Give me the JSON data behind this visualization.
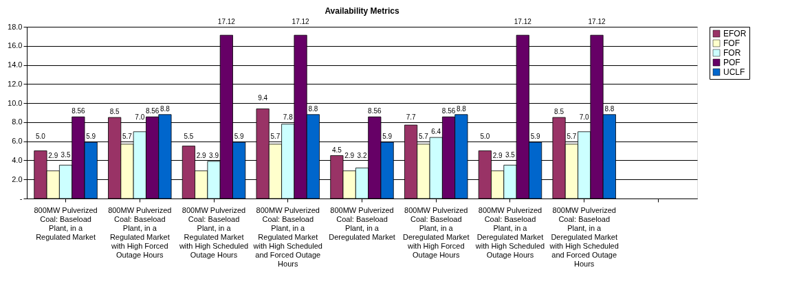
{
  "chart_data": {
    "type": "bar",
    "title": "Availability Metrics",
    "categories": [
      "800MW Pulverized Coal: Baseload Plant, in a Regulated Market",
      "800MW Pulverized Coal: Baseload Plant, in a Regulated Market with High Forced Outage Hours",
      "800MW Pulverized Coal: Baseload Plant, in a Regulated Market with High Scheduled Outage Hours",
      "800MW Pulverized Coal: Baseload Plant, in a Regulated Market with High Scheduled and Forced Outage Hours",
      "800MW Pulverized Coal: Baseload Plant, in a Deregulated Market",
      "800MW Pulverized Coal: Baseload Plant, in a Deregulated Market with High Forced Outage Hours",
      "800MW Pulverized Coal: Baseload Plant, in a Deregulated Market with High Scheduled Outage Hours",
      "800MW Pulverized Coal: Baseload Plant, in a Deregulated Market with High Scheduled and Forced Outage Hours",
      null
    ],
    "series": [
      {
        "name": "EFOR",
        "color": "#993366",
        "values": [
          5.0,
          8.5,
          5.5,
          9.4,
          4.5,
          7.7,
          5.0,
          8.5,
          null
        ],
        "value_labels": [
          "5.0",
          "8.5",
          "5.5",
          "9.4",
          "4.5",
          "7.7",
          "5.0",
          "8.5",
          null
        ]
      },
      {
        "name": "FOF",
        "color": "#ffffcc",
        "values": [
          2.9,
          5.7,
          2.9,
          5.7,
          2.9,
          5.7,
          2.9,
          5.7,
          null
        ],
        "value_labels": [
          "2.9",
          "5.7",
          "2.9",
          "5.7",
          "2.9",
          "5.7",
          "2.9",
          "5.7",
          null
        ]
      },
      {
        "name": "FOR",
        "color": "#ccffff",
        "values": [
          3.5,
          7.0,
          3.9,
          7.8,
          3.2,
          6.4,
          3.5,
          7.0,
          null
        ],
        "value_labels": [
          "3.5",
          "7.0",
          "3.9",
          "7.8",
          "3.2",
          "6.4",
          "3.5",
          "7.0",
          null
        ]
      },
      {
        "name": "POF",
        "color": "#660066",
        "values": [
          8.56,
          8.56,
          17.12,
          17.12,
          8.56,
          8.56,
          17.12,
          17.12,
          null
        ],
        "value_labels": [
          "8.56",
          "8.56",
          "17.12",
          "17.12",
          "8.56",
          "8.56",
          "17.12",
          "17.12",
          null
        ]
      },
      {
        "name": "UCLF",
        "color": "#0066cc",
        "values": [
          5.9,
          8.8,
          5.9,
          8.8,
          5.9,
          8.8,
          5.9,
          8.8,
          null
        ],
        "value_labels": [
          "5.9",
          "8.8",
          "5.9",
          "8.8",
          "5.9",
          "8.8",
          "5.9",
          "8.8",
          null
        ]
      }
    ],
    "ylim": [
      0,
      18
    ],
    "yticks": [
      {
        "value": 0,
        "label": "-"
      },
      {
        "value": 2,
        "label": "2.0"
      },
      {
        "value": 4,
        "label": "4.0"
      },
      {
        "value": 6,
        "label": "6.0"
      },
      {
        "value": 8,
        "label": "8.0"
      },
      {
        "value": 10,
        "label": "10.0"
      },
      {
        "value": 12,
        "label": "12.0"
      },
      {
        "value": 14,
        "label": "14.0"
      },
      {
        "value": 16,
        "label": "16.0"
      },
      {
        "value": 18,
        "label": "18.0"
      }
    ],
    "grid": "y",
    "legend": "right"
  }
}
